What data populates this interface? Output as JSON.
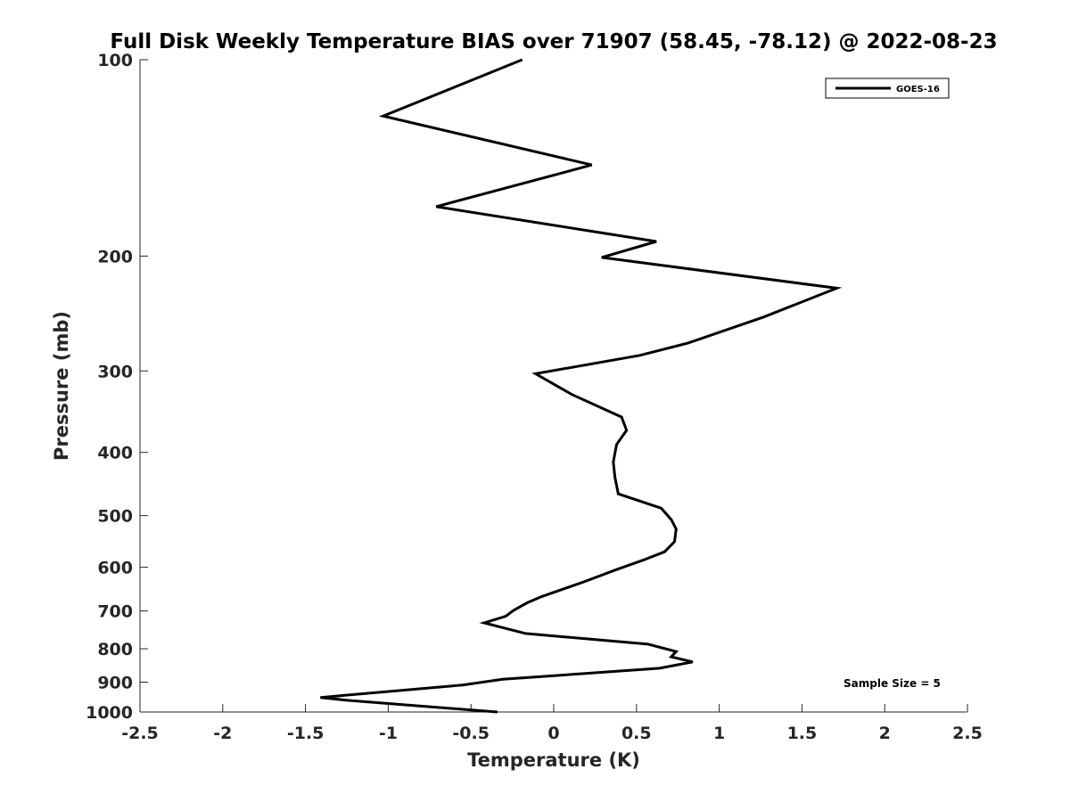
{
  "chart_data": {
    "type": "line",
    "title": "Full Disk Weekly Temperature BIAS over 71907 (58.45, -78.12) @ 2022-08-23",
    "xlabel": "Temperature (K)",
    "ylabel": "Pressure (mb)",
    "xlim": [
      -2.5,
      2.5
    ],
    "ylim": [
      100,
      1000
    ],
    "y_scale": "log",
    "y_reversed": true,
    "x_ticks": [
      "-2.5",
      "-2",
      "-1.5",
      "-1",
      "-0.5",
      "0",
      "0.5",
      "1",
      "1.5",
      "2",
      "2.5"
    ],
    "x_tick_values": [
      -2.5,
      -2,
      -1.5,
      -1,
      -0.5,
      0,
      0.5,
      1,
      1.5,
      2,
      2.5
    ],
    "y_ticks": [
      "100",
      "200",
      "300",
      "400",
      "500",
      "600",
      "700",
      "800",
      "900",
      "1000"
    ],
    "y_tick_values": [
      100,
      200,
      300,
      400,
      500,
      600,
      700,
      800,
      900,
      1000
    ],
    "grid": false,
    "legend_position": "top-right",
    "annotation": "Sample Size = 5",
    "series": [
      {
        "name": "GOES-16",
        "color": "#000000",
        "points": [
          [
            -0.19,
            100
          ],
          [
            -1.03,
            122
          ],
          [
            0.23,
            145
          ],
          [
            -0.71,
            168
          ],
          [
            0.62,
            190
          ],
          [
            0.29,
            201
          ],
          [
            1.71,
            224
          ],
          [
            1.27,
            248
          ],
          [
            0.81,
            272
          ],
          [
            0.52,
            284
          ],
          [
            -0.11,
            303
          ],
          [
            0.11,
            326
          ],
          [
            0.41,
            353
          ],
          [
            0.44,
            370
          ],
          [
            0.38,
            389
          ],
          [
            0.36,
            414
          ],
          [
            0.37,
            437
          ],
          [
            0.39,
            463
          ],
          [
            0.65,
            487
          ],
          [
            0.71,
            507
          ],
          [
            0.74,
            524
          ],
          [
            0.73,
            548
          ],
          [
            0.67,
            568
          ],
          [
            0.54,
            585
          ],
          [
            0.37,
            606
          ],
          [
            0.18,
            632
          ],
          [
            -0.07,
            665
          ],
          [
            -0.16,
            680
          ],
          [
            -0.24,
            698
          ],
          [
            -0.29,
            713
          ],
          [
            -0.42,
            730
          ],
          [
            -0.17,
            758
          ],
          [
            0.57,
            787
          ],
          [
            0.74,
            808
          ],
          [
            0.71,
            823
          ],
          [
            0.84,
            838
          ],
          [
            0.64,
            857
          ],
          [
            -0.31,
            891
          ],
          [
            -0.55,
            909
          ],
          [
            -1.41,
            950
          ],
          [
            -1.24,
            960
          ],
          [
            -0.34,
            1000
          ]
        ]
      }
    ]
  }
}
